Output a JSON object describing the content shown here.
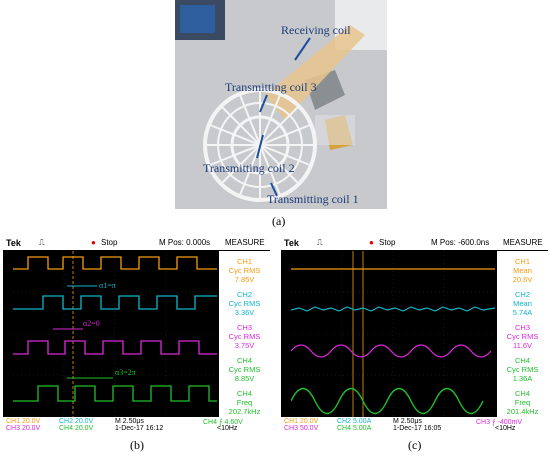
{
  "photo": {
    "labels": {
      "receiving": "Receiving coil",
      "tx3": "Transmitting coil 3",
      "tx2": "Transmitting coil 2",
      "tx1": "Transmitting coil 1"
    },
    "caption": "(a)"
  },
  "scope_b": {
    "brand": "Tek",
    "state": "Stop",
    "mpos": "M Pos: 0.000s",
    "measure_title": "MEASURE",
    "measurements": [
      {
        "ch": "CH1",
        "type": "Cyc RMS",
        "val": "7.85V",
        "color": "#f39c12"
      },
      {
        "ch": "CH2",
        "type": "Cyc RMS",
        "val": "3.36V",
        "color": "#12b5c8"
      },
      {
        "ch": "CH3",
        "type": "Cyc RMS",
        "val": "3.75V",
        "color": "#d92ad9"
      },
      {
        "ch": "CH4",
        "type": "Cyc RMS",
        "val": "8.85V",
        "color": "#1fbf2b"
      },
      {
        "ch": "CH4",
        "type": "Freq",
        "val": "202.7kHz",
        "color": "#1fbf2b"
      }
    ],
    "annotations": {
      "a1": "α1=π",
      "a2": "α2=0",
      "a3": "α3=2π"
    },
    "footer": {
      "ch1": "CH1  20.0V",
      "ch2": "CH2  20.0V",
      "ch3": "CH3  20.0V",
      "ch4": "CH4  20.0V",
      "time": "M 2.50μs",
      "date": "1-Dec-17 16:12",
      "trig": "CH4 ⨍  4.60V",
      "freq": "<10Hz"
    },
    "caption": "(b)"
  },
  "scope_c": {
    "brand": "Tek",
    "state": "Stop",
    "mpos": "M Pos: -600.0ns",
    "measure_title": "MEASURE",
    "measurements": [
      {
        "ch": "CH1",
        "type": "Mean",
        "val": "20.6V",
        "color": "#f39c12"
      },
      {
        "ch": "CH2",
        "type": "Mean",
        "val": "5.74A",
        "color": "#12b5c8"
      },
      {
        "ch": "CH3",
        "type": "Cyc RMS",
        "val": "11.6V",
        "color": "#d92ad9"
      },
      {
        "ch": "CH4",
        "type": "Cyc RMS",
        "val": "1.36A",
        "color": "#1fbf2b"
      },
      {
        "ch": "CH4",
        "type": "Freq",
        "val": "201.4kHz",
        "color": "#1fbf2b"
      }
    ],
    "footer": {
      "ch1": "CH1  20.0V",
      "ch2": "CH2  5.00A",
      "ch3": "CH3  50.0V",
      "ch4": "CH4  5.00A",
      "time": "M 2.50μs",
      "date": "1-Dec-17 16:05",
      "trig": "CH3 ⨍  -400mV",
      "freq": "<10Hz"
    },
    "caption": "(c)"
  }
}
